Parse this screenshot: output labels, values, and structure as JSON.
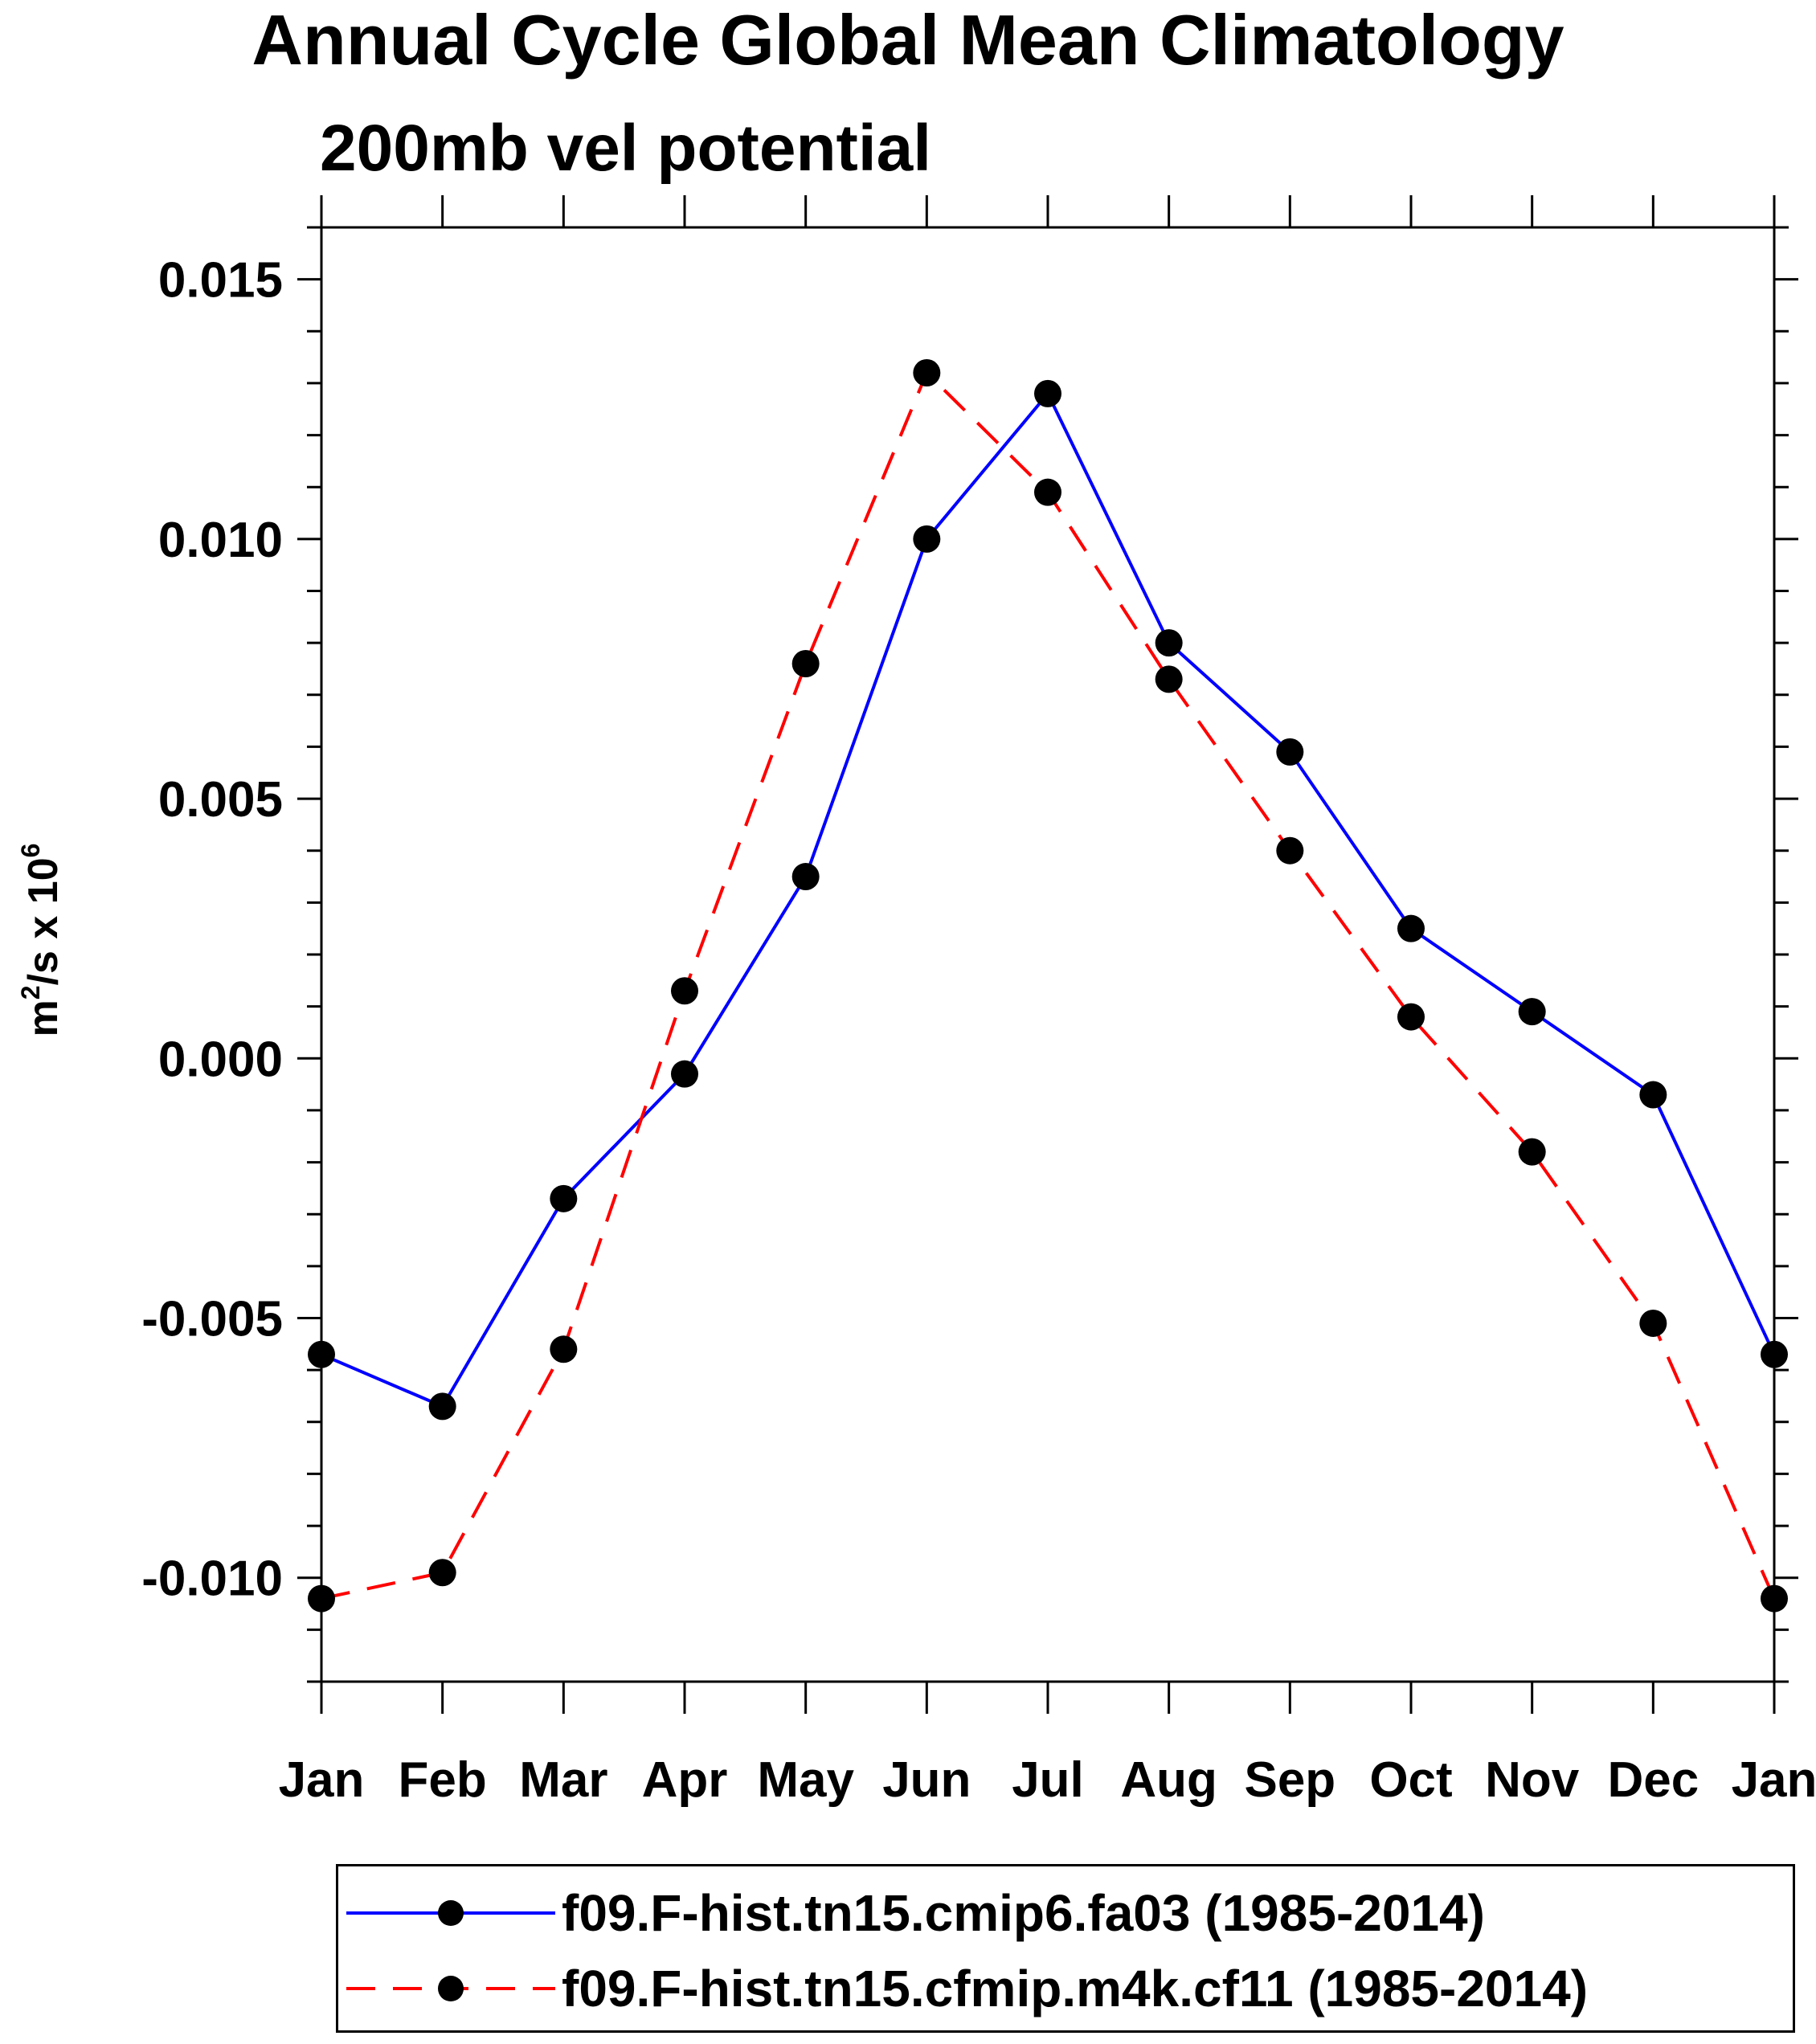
{
  "chart_data": {
    "type": "line",
    "title": "Annual Cycle Global Mean Climatology",
    "subtitle": "200mb vel potential",
    "ylabel_base": "m",
    "ylabel_sup1": "2",
    "ylabel_mid": "/s x 10",
    "ylabel_sup2": "6",
    "xlabel": "",
    "categories": [
      "Jan",
      "Feb",
      "Mar",
      "Apr",
      "May",
      "Jun",
      "Jul",
      "Aug",
      "Sep",
      "Oct",
      "Nov",
      "Dec",
      "Jan"
    ],
    "yticks": [
      "0.015",
      "0.010",
      "0.005",
      "0.000",
      "-0.005",
      "-0.010"
    ],
    "ytick_values": [
      0.015,
      0.01,
      0.005,
      0.0,
      -0.005,
      -0.01
    ],
    "ylim": [
      -0.012,
      0.016
    ],
    "series": [
      {
        "name": "f09.F-hist.tn15.cmip6.fa03 (1985-2014)",
        "color": "#0000ff",
        "style": "solid",
        "values": [
          -0.0057,
          -0.0067,
          -0.0027,
          -0.0003,
          0.0035,
          0.01,
          0.0128,
          0.008,
          0.0059,
          0.0025,
          0.0009,
          -0.0007,
          -0.0057
        ]
      },
      {
        "name": "f09.F-hist.tn15.cfmip.m4k.cf11 (1985-2014)",
        "color": "#ff0000",
        "style": "dashed",
        "values": [
          -0.0104,
          -0.0099,
          -0.0056,
          0.0013,
          0.0076,
          0.0132,
          0.0109,
          0.0073,
          0.004,
          0.0008,
          -0.0018,
          -0.0051,
          -0.0104
        ]
      }
    ],
    "legend_position": "bottom"
  }
}
